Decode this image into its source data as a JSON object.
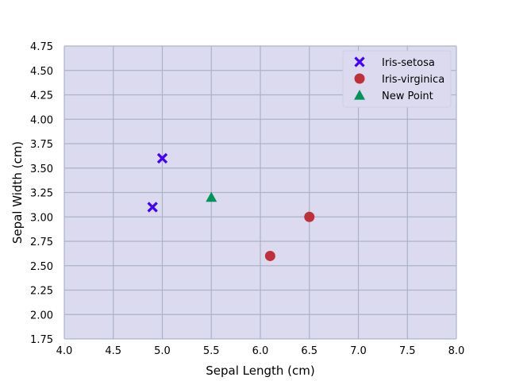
{
  "chart_data": {
    "type": "scatter",
    "title": "",
    "xlabel": "Sepal Length (cm)",
    "ylabel": "Sepal Width (cm)",
    "xlim": [
      4.0,
      8.0
    ],
    "ylim": [
      1.75,
      4.75
    ],
    "x_ticks": [
      "4.0",
      "4.5",
      "5.0",
      "5.5",
      "6.0",
      "6.5",
      "7.0",
      "7.5",
      "8.0"
    ],
    "y_ticks": [
      "1.75",
      "2.00",
      "2.25",
      "2.50",
      "2.75",
      "3.00",
      "3.25",
      "3.50",
      "3.75",
      "4.00",
      "4.25",
      "4.50",
      "4.75"
    ],
    "grid": true,
    "legend_position": "top-right",
    "series": [
      {
        "name": "Iris-setosa",
        "marker": "x",
        "color": "#4400ff",
        "points": [
          [
            5.0,
            3.6
          ],
          [
            4.9,
            3.1
          ]
        ]
      },
      {
        "name": "Iris-virginica",
        "marker": "circle",
        "color": "#c0303c",
        "points": [
          [
            6.5,
            3.0
          ],
          [
            6.1,
            2.6
          ]
        ]
      },
      {
        "name": "New Point",
        "marker": "triangle",
        "color": "#00955a",
        "points": [
          [
            5.5,
            3.2
          ]
        ]
      }
    ],
    "colors": {
      "plot_background": "#dcdaee",
      "grid": "#aab3c8"
    }
  }
}
